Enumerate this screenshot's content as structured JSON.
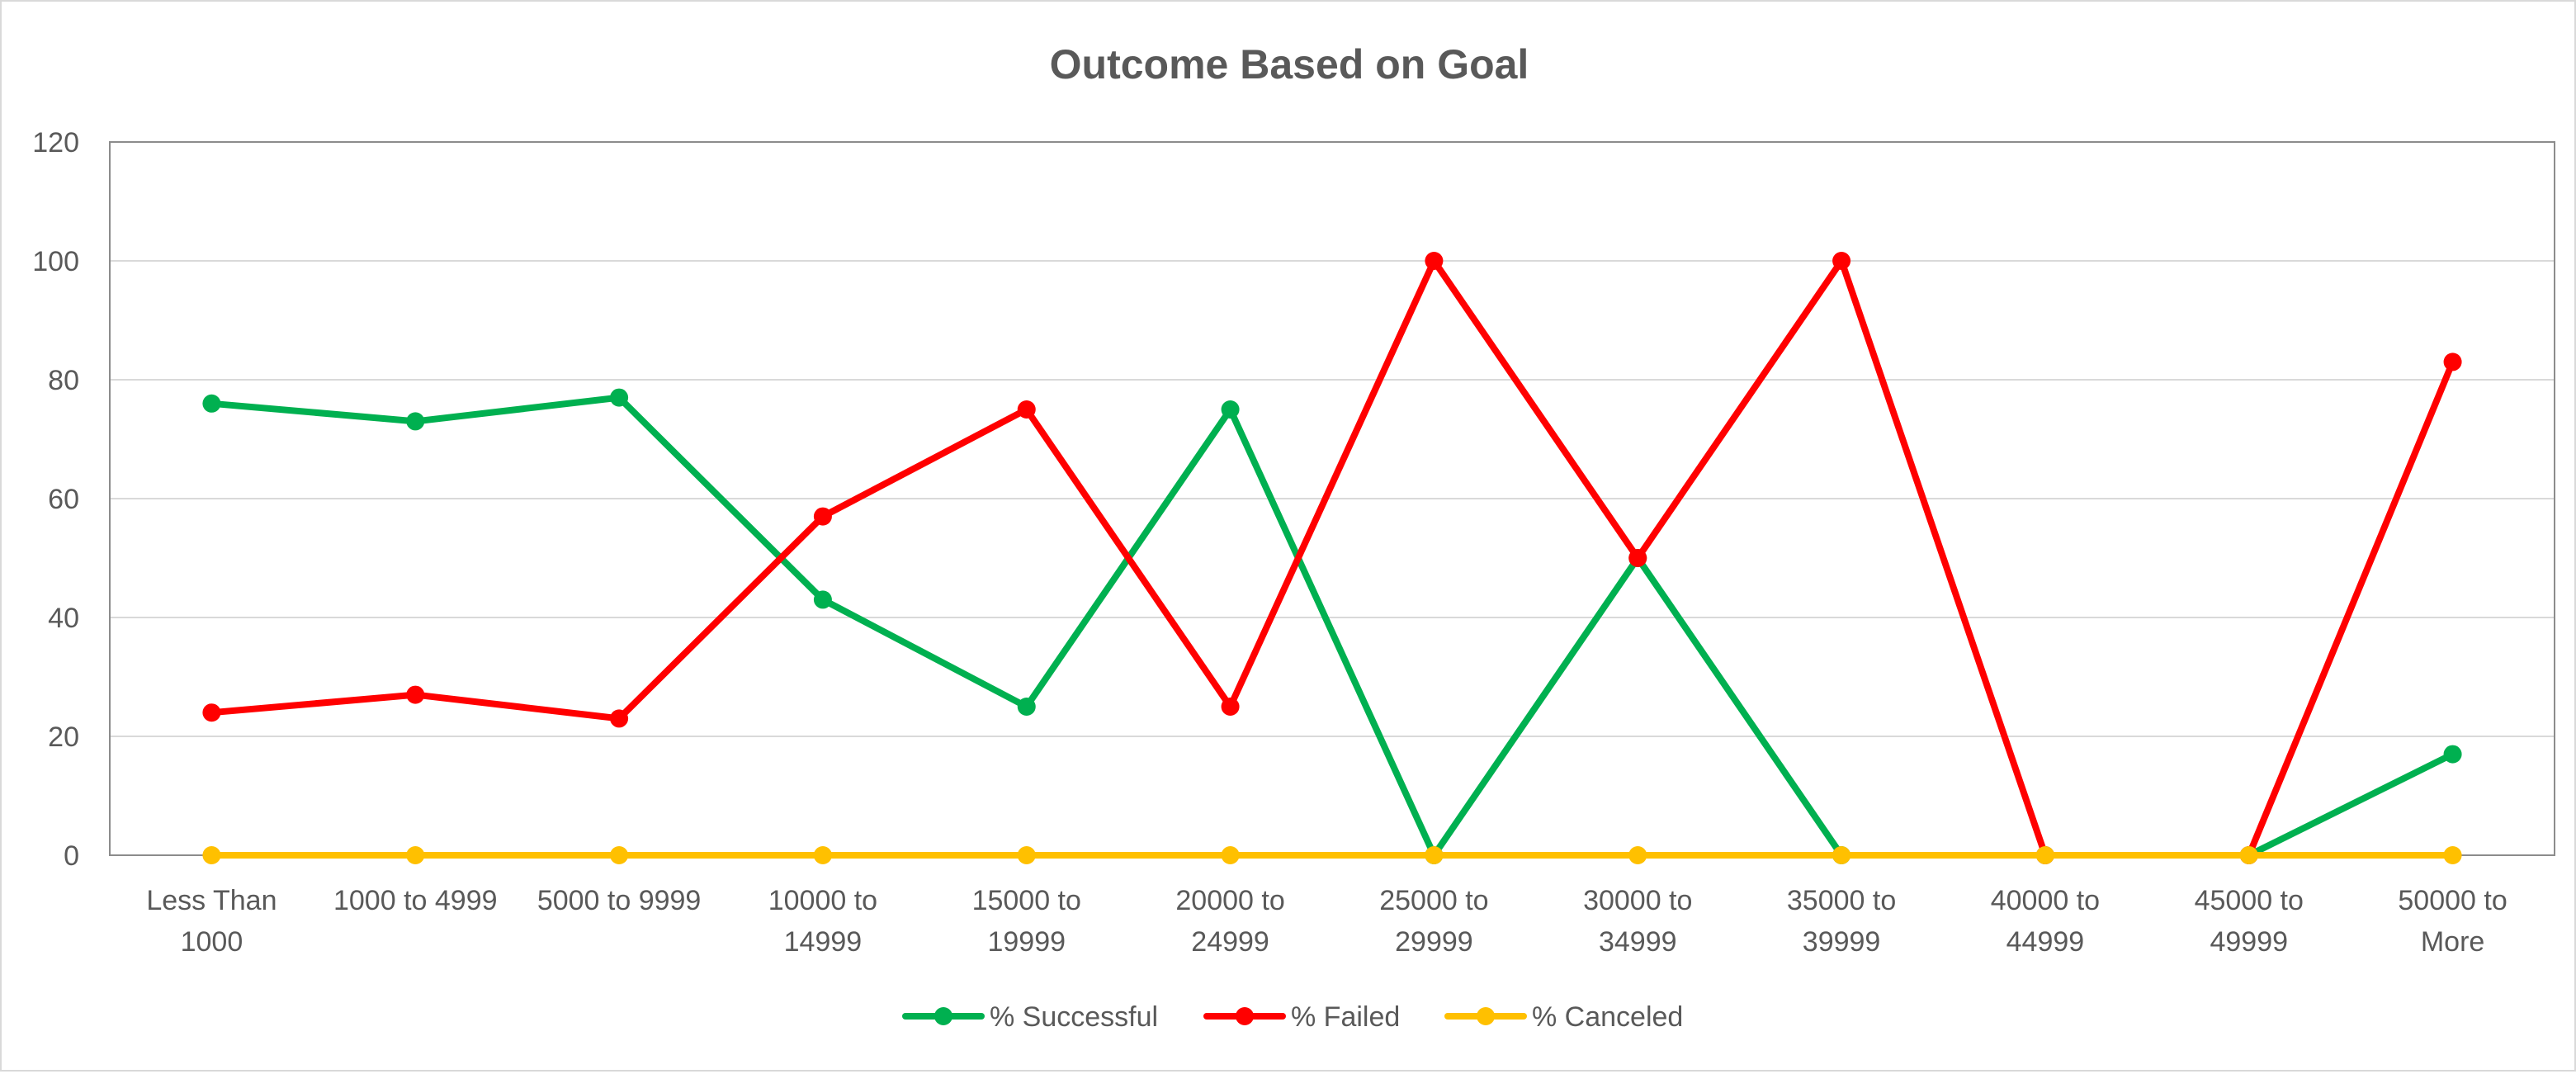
{
  "chart_data": {
    "type": "line",
    "title": "Outcome Based on Goal",
    "xlabel": "",
    "ylabel": "",
    "ylim": [
      0,
      120
    ],
    "yticks": [
      0,
      20,
      40,
      60,
      80,
      100,
      120
    ],
    "grid": true,
    "legend_position": "bottom",
    "categories": [
      [
        "Less Than",
        "1000"
      ],
      [
        "1000 to 4999"
      ],
      [
        "5000 to 9999"
      ],
      [
        "10000 to",
        "14999"
      ],
      [
        "15000 to",
        "19999"
      ],
      [
        "20000 to",
        "24999"
      ],
      [
        "25000 to",
        "29999"
      ],
      [
        "30000 to",
        "34999"
      ],
      [
        "35000 to",
        "39999"
      ],
      [
        "40000 to",
        "44999"
      ],
      [
        "45000 to",
        "49999"
      ],
      [
        "50000 to",
        "More"
      ]
    ],
    "series": [
      {
        "name": "% Successful",
        "color": "#00b050",
        "values": [
          76,
          73,
          77,
          43,
          25,
          75,
          0,
          50,
          0,
          0,
          0,
          17
        ]
      },
      {
        "name": "% Failed",
        "color": "#ff0000",
        "values": [
          24,
          27,
          23,
          57,
          75,
          25,
          100,
          50,
          100,
          0,
          0,
          83
        ]
      },
      {
        "name": "% Canceled",
        "color": "#ffc000",
        "values": [
          0,
          0,
          0,
          0,
          0,
          0,
          0,
          0,
          0,
          0,
          0,
          0
        ]
      }
    ]
  }
}
